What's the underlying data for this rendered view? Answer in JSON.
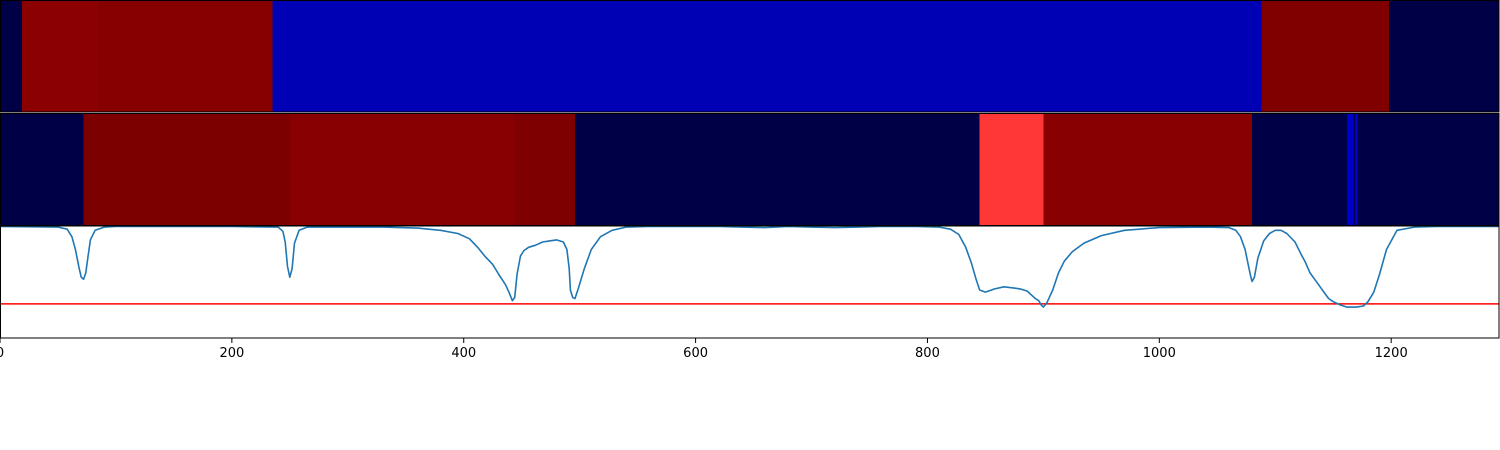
{
  "chart_data": [
    {
      "type": "heatmap",
      "xlim": [
        0,
        1293
      ],
      "segments": [
        {
          "start": 0,
          "end": 19,
          "color": "#000046"
        },
        {
          "start": 19,
          "end": 85,
          "color": "#8b0000"
        },
        {
          "start": 85,
          "end": 235,
          "color": "#870000"
        },
        {
          "start": 235,
          "end": 1088,
          "color": "#0000b4"
        },
        {
          "start": 1088,
          "end": 1198,
          "color": "#800000"
        },
        {
          "start": 1198,
          "end": 1293,
          "color": "#000046"
        }
      ]
    },
    {
      "type": "heatmap",
      "xlim": [
        0,
        1293
      ],
      "segments": [
        {
          "start": 0,
          "end": 72,
          "color": "#000046"
        },
        {
          "start": 72,
          "end": 250,
          "color": "#7d0000"
        },
        {
          "start": 250,
          "end": 444,
          "color": "#880000"
        },
        {
          "start": 444,
          "end": 496,
          "color": "#7e0000"
        },
        {
          "start": 496,
          "end": 845,
          "color": "#000046"
        },
        {
          "start": 845,
          "end": 900,
          "color": "#ff3737"
        },
        {
          "start": 900,
          "end": 1080,
          "color": "#880000"
        },
        {
          "start": 1080,
          "end": 1162,
          "color": "#000046"
        },
        {
          "start": 1162,
          "end": 1167,
          "color": "#0000cc"
        },
        {
          "start": 1167,
          "end": 1169,
          "color": "#000046"
        },
        {
          "start": 1169,
          "end": 1171,
          "color": "#0000cc"
        },
        {
          "start": 1171,
          "end": 1293,
          "color": "#000046"
        }
      ]
    },
    {
      "type": "line",
      "xlim": [
        0,
        1293
      ],
      "ylim": [
        -0.05,
        1.0
      ],
      "line_color": "#1f77b4",
      "threshold": 0.27,
      "threshold_color": "#ff0000",
      "x": [
        0,
        50,
        58,
        62,
        65,
        68,
        70,
        72,
        74,
        76,
        78,
        82,
        90,
        100,
        200,
        240,
        244,
        246,
        248,
        250,
        252,
        254,
        258,
        265,
        330,
        360,
        380,
        395,
        405,
        412,
        418,
        425,
        430,
        436,
        439,
        442,
        444,
        446,
        449,
        452,
        456,
        462,
        468,
        474,
        480,
        486,
        489,
        491,
        492,
        494,
        496,
        499,
        504,
        510,
        518,
        528,
        540,
        560,
        620,
        640,
        660,
        680,
        700,
        720,
        740,
        760,
        790,
        810,
        820,
        827,
        833,
        838,
        842,
        845,
        850,
        858,
        866,
        874,
        880,
        886,
        890,
        893,
        896,
        898,
        900,
        903,
        908,
        913,
        918,
        925,
        935,
        950,
        970,
        1000,
        1040,
        1060,
        1066,
        1070,
        1074,
        1077,
        1079,
        1080,
        1082,
        1085,
        1090,
        1095,
        1100,
        1105,
        1110,
        1117,
        1122,
        1126,
        1130,
        1134,
        1138,
        1142,
        1146,
        1150,
        1156,
        1162,
        1170,
        1176,
        1180,
        1185,
        1190,
        1196,
        1205,
        1220,
        1240,
        1293
      ],
      "y": [
        0.995,
        0.99,
        0.97,
        0.9,
        0.78,
        0.62,
        0.52,
        0.5,
        0.56,
        0.72,
        0.87,
        0.96,
        0.99,
        0.995,
        0.995,
        0.99,
        0.95,
        0.85,
        0.62,
        0.52,
        0.6,
        0.84,
        0.96,
        0.99,
        0.99,
        0.98,
        0.96,
        0.93,
        0.88,
        0.8,
        0.72,
        0.64,
        0.55,
        0.45,
        0.38,
        0.3,
        0.33,
        0.55,
        0.72,
        0.77,
        0.8,
        0.82,
        0.85,
        0.86,
        0.87,
        0.85,
        0.78,
        0.6,
        0.4,
        0.33,
        0.32,
        0.42,
        0.6,
        0.78,
        0.9,
        0.96,
        0.99,
        0.995,
        0.995,
        0.99,
        0.985,
        0.995,
        0.99,
        0.985,
        0.99,
        0.995,
        0.995,
        0.99,
        0.97,
        0.92,
        0.8,
        0.65,
        0.5,
        0.4,
        0.38,
        0.41,
        0.43,
        0.42,
        0.41,
        0.39,
        0.35,
        0.32,
        0.3,
        0.26,
        0.24,
        0.28,
        0.4,
        0.56,
        0.67,
        0.76,
        0.84,
        0.91,
        0.96,
        0.985,
        0.99,
        0.985,
        0.96,
        0.9,
        0.78,
        0.62,
        0.52,
        0.48,
        0.52,
        0.7,
        0.86,
        0.93,
        0.96,
        0.96,
        0.93,
        0.85,
        0.74,
        0.66,
        0.56,
        0.5,
        0.44,
        0.38,
        0.32,
        0.29,
        0.26,
        0.24,
        0.24,
        0.25,
        0.29,
        0.38,
        0.55,
        0.78,
        0.96,
        0.99,
        0.995,
        0.995
      ]
    }
  ],
  "x_axis": {
    "ticks": [
      0,
      200,
      400,
      600,
      800,
      1000,
      1200
    ],
    "tick_labels": [
      "0",
      "200",
      "400",
      "600",
      "800",
      "1000",
      "1200"
    ]
  }
}
